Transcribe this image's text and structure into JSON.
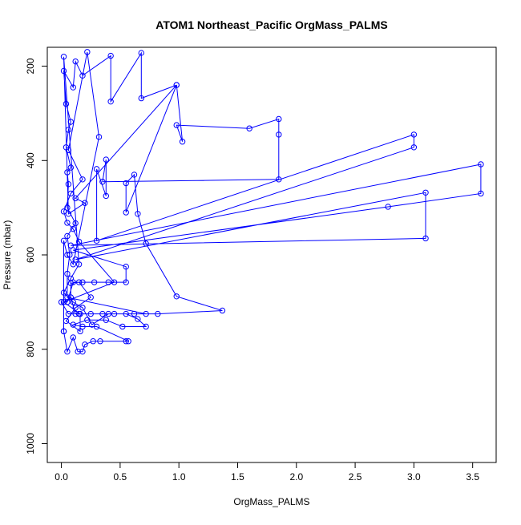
{
  "chart_data": {
    "type": "line",
    "title": "ATOM1 Northeast_Pacific OrgMass_PALMS",
    "xlabel": "OrgMass_PALMS",
    "ylabel": "Pressure (mbar)",
    "xlim": [
      -0.12,
      3.7
    ],
    "ylim": [
      1040,
      160
    ],
    "y_reversed": true,
    "grid": false,
    "legend": "none",
    "x_ticks": [
      {
        "value": 0.0,
        "label": "0.0"
      },
      {
        "value": 0.5,
        "label": "0.5"
      },
      {
        "value": 1.0,
        "label": "1.0"
      },
      {
        "value": 1.5,
        "label": "1.5"
      },
      {
        "value": 2.0,
        "label": "2.0"
      },
      {
        "value": 2.5,
        "label": "2.5"
      },
      {
        "value": 3.0,
        "label": "3.0"
      },
      {
        "value": 3.5,
        "label": "3.5"
      }
    ],
    "y_ticks": [
      {
        "value": 200,
        "label": "200"
      },
      {
        "value": 400,
        "label": "400"
      },
      {
        "value": 600,
        "label": "600"
      },
      {
        "value": 800,
        "label": "800"
      },
      {
        "value": 1000,
        "label": "1000"
      }
    ],
    "colors": {
      "series": "#0000ff",
      "axis": "#000000",
      "background": "#ffffff"
    },
    "series": [
      {
        "points": [
          [
            0.02,
            762
          ],
          [
            0.05,
            805
          ],
          [
            0.1,
            775
          ],
          [
            0.14,
            805
          ],
          [
            0.18,
            805
          ],
          [
            0.2,
            790
          ],
          [
            0.27,
            783
          ],
          [
            0.33,
            783
          ],
          [
            0.55,
            783
          ],
          [
            0.57,
            783
          ],
          [
            0.3,
            752
          ],
          [
            0.18,
            752
          ],
          [
            0.1,
            748
          ],
          [
            0.22,
            738
          ],
          [
            0.38,
            738
          ],
          [
            0.52,
            752
          ],
          [
            0.72,
            752
          ],
          [
            0.65,
            736
          ],
          [
            0.55,
            725
          ],
          [
            0.82,
            725
          ],
          [
            1.37,
            718
          ],
          [
            0.98,
            688
          ],
          [
            0.72,
            576
          ],
          [
            0.65,
            513
          ],
          [
            0.62,
            430
          ],
          [
            0.55,
            448
          ],
          [
            0.55,
            510
          ],
          [
            0.98,
            240
          ],
          [
            1.03,
            360
          ],
          [
            0.98,
            325
          ],
          [
            1.6,
            332
          ],
          [
            1.85,
            312
          ],
          [
            1.85,
            345
          ],
          [
            1.85,
            440
          ],
          [
            0.35,
            445
          ],
          [
            0.38,
            398
          ],
          [
            0.38,
            475
          ],
          [
            0.3,
            418
          ],
          [
            0.3,
            570
          ],
          [
            3.0,
            345
          ],
          [
            3.0,
            372
          ],
          [
            0.12,
            610
          ],
          [
            3.1,
            468
          ],
          [
            3.1,
            565
          ],
          [
            0.08,
            580
          ],
          [
            3.57,
            408
          ],
          [
            3.57,
            470
          ],
          [
            2.78,
            498
          ],
          [
            0.1,
            590
          ],
          [
            0.55,
            625
          ],
          [
            0.55,
            658
          ],
          [
            0.4,
            658
          ],
          [
            0.28,
            658
          ],
          [
            0.18,
            658
          ],
          [
            0.1,
            658
          ],
          [
            0.05,
            700
          ],
          [
            0.0,
            700
          ],
          [
            0.06,
            725
          ],
          [
            0.15,
            725
          ],
          [
            0.25,
            725
          ],
          [
            0.35,
            725
          ],
          [
            0.45,
            725
          ],
          [
            0.62,
            725
          ],
          [
            0.72,
            725
          ],
          [
            0.05,
            690
          ],
          [
            0.05,
            640
          ],
          [
            0.07,
            600
          ],
          [
            0.05,
            560
          ],
          [
            0.12,
            533
          ],
          [
            0.05,
            500
          ],
          [
            0.06,
            450
          ],
          [
            0.05,
            425
          ],
          [
            0.08,
            415
          ],
          [
            0.04,
            372
          ],
          [
            0.06,
            335
          ],
          [
            0.08,
            318
          ],
          [
            0.04,
            280
          ],
          [
            0.02,
            210
          ],
          [
            0.1,
            245
          ],
          [
            0.12,
            190
          ],
          [
            0.18,
            220
          ],
          [
            0.42,
            178
          ],
          [
            0.42,
            275
          ],
          [
            0.68,
            172
          ],
          [
            0.68,
            268
          ],
          [
            0.98,
            240
          ],
          [
            0.12,
            480
          ],
          [
            0.2,
            490
          ],
          [
            0.06,
            513
          ],
          [
            0.02,
            180
          ],
          [
            0.15,
            620
          ],
          [
            0.08,
            650
          ],
          [
            0.02,
            680
          ],
          [
            0.1,
            700
          ],
          [
            0.18,
            712
          ],
          [
            0.26,
            748
          ],
          [
            0.4,
            725
          ],
          [
            0.12,
            725
          ],
          [
            0.08,
            690
          ],
          [
            0.08,
            660
          ],
          [
            0.15,
            658
          ],
          [
            0.25,
            690
          ],
          [
            0.12,
            712
          ],
          [
            0.04,
            740
          ],
          [
            0.16,
            762
          ],
          [
            0.16,
            725
          ],
          [
            0.02,
            700
          ],
          [
            0.45,
            658
          ],
          [
            0.15,
            572
          ],
          [
            0.1,
            545
          ],
          [
            0.05,
            532
          ],
          [
            0.02,
            508
          ],
          [
            0.08,
            470
          ],
          [
            0.18,
            440
          ],
          [
            0.06,
            378
          ],
          [
            0.22,
            170
          ],
          [
            0.32,
            350
          ],
          [
            0.1,
            620
          ],
          [
            0.05,
            600
          ],
          [
            0.02,
            570
          ],
          [
            0.02,
            762
          ]
        ]
      }
    ]
  }
}
